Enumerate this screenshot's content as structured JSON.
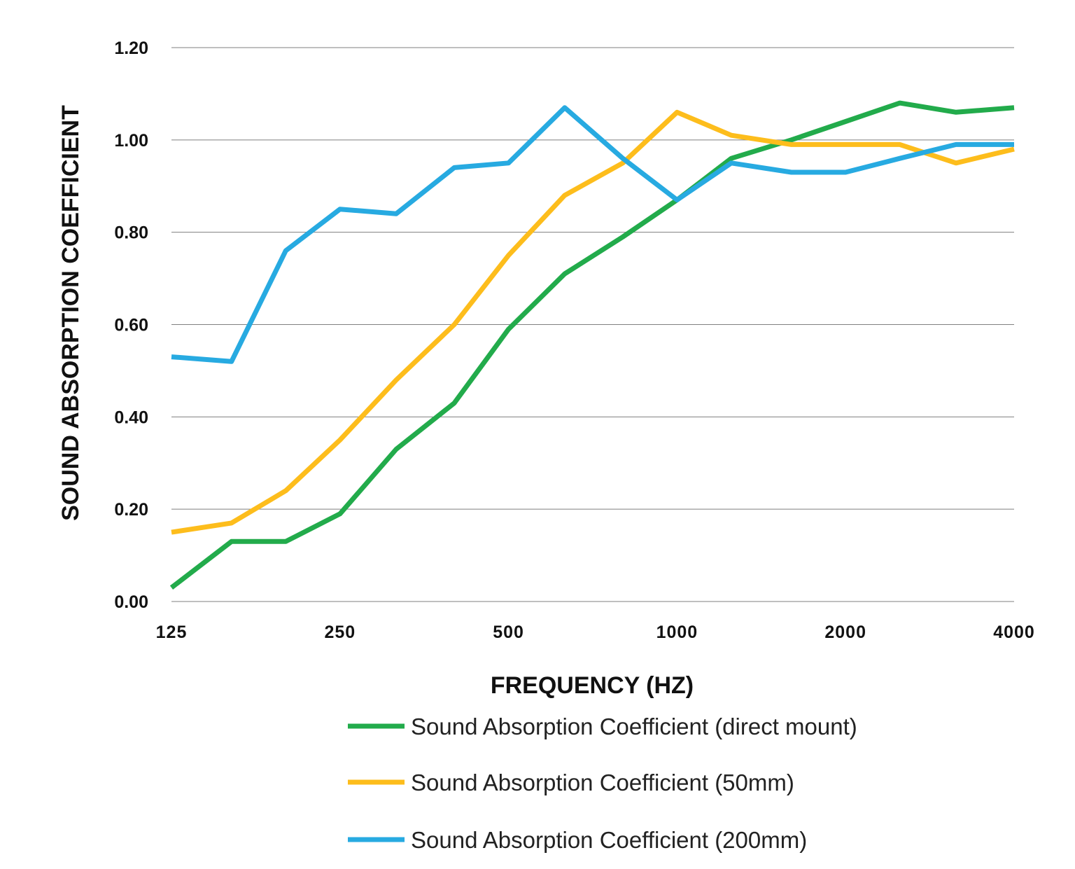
{
  "chart_data": {
    "type": "line",
    "xlabel": "FREQUENCY (HZ)",
    "ylabel": "SOUND ABSORPTION COEFFICIENT",
    "x": [
      125,
      160,
      200,
      250,
      315,
      400,
      500,
      630,
      800,
      1000,
      1250,
      1600,
      2000,
      2500,
      3150,
      4000
    ],
    "x_tick_values": [
      125,
      250,
      500,
      1000,
      2000,
      4000
    ],
    "x_tick_labels": [
      "125",
      "250",
      "500",
      "1000",
      "2000",
      "4000"
    ],
    "x_scale": "log",
    "ylim": [
      0,
      1.2
    ],
    "y_tick_values": [
      0,
      0.2,
      0.4,
      0.6,
      0.8,
      1.0,
      1.2
    ],
    "y_tick_labels": [
      "0.00",
      "0.20",
      "0.40",
      "0.60",
      "0.80",
      "1.00",
      "1.20"
    ],
    "grid": true,
    "legend_position": "bottom",
    "series": [
      {
        "name": "Sound Absorption Coefficient (direct mount)",
        "color": "#22ab4b",
        "values": [
          0.03,
          0.13,
          0.13,
          0.19,
          0.33,
          0.43,
          0.59,
          0.71,
          0.79,
          0.87,
          0.96,
          1.0,
          1.04,
          1.08,
          1.06,
          1.07
        ]
      },
      {
        "name": "Sound Absorption Coefficient (50mm)",
        "color": "#fdbd1c",
        "values": [
          0.15,
          0.17,
          0.24,
          0.35,
          0.48,
          0.6,
          0.75,
          0.88,
          0.95,
          1.06,
          1.01,
          0.99,
          0.99,
          0.99,
          0.95,
          0.98
        ]
      },
      {
        "name": "Sound Absorption Coefficient (200mm)",
        "color": "#27aae1",
        "values": [
          0.53,
          0.52,
          0.76,
          0.85,
          0.84,
          0.94,
          0.95,
          1.07,
          0.96,
          0.87,
          0.95,
          0.93,
          0.93,
          0.96,
          0.99,
          0.99
        ]
      }
    ]
  }
}
